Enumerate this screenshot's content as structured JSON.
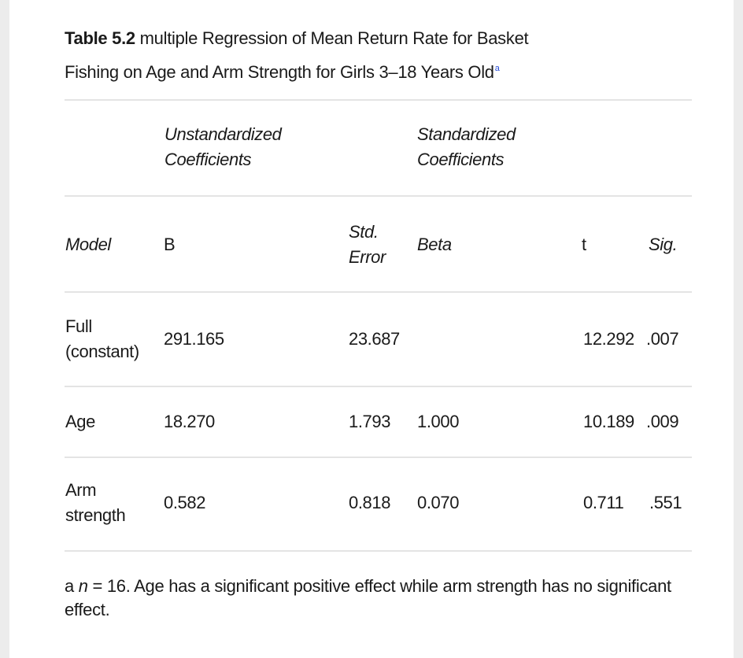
{
  "caption": {
    "label": "Table 5.2",
    "line1": "multiple Regression of Mean Return Rate for Basket",
    "line2": "Fishing on Age and Arm Strength for Girls 3–18 Years Old",
    "footnote_marker": "a"
  },
  "table": {
    "group_headers": {
      "unstandardized_line1": "Unstandardized",
      "unstandardized_line2": "Coefficients",
      "standardized_line1": "Standardized",
      "standardized_line2": "Coefficients"
    },
    "columns": {
      "model": "Model",
      "b": "B",
      "std_error_line1": "Std.",
      "std_error_line2": "Error",
      "beta": "Beta",
      "t": "t",
      "sig": "Sig."
    },
    "rows": [
      {
        "model_line1": "Full",
        "model_line2": "(constant)",
        "b": "291.165",
        "std_error": "23.687",
        "beta": "",
        "t": "12.292",
        "sig": ".007"
      },
      {
        "model_line1": "Age",
        "model_line2": "",
        "b": "18.270",
        "std_error": "1.793",
        "beta": "1.000",
        "t": "10.189",
        "sig": ".009"
      },
      {
        "model_line1": "Arm",
        "model_line2": "strength",
        "b": "0.582",
        "std_error": "0.818",
        "beta": "0.070",
        "t": "0.711",
        "sig": ".551"
      }
    ]
  },
  "note": {
    "marker": "a",
    "n_symbol": "n",
    "text": "= 16. Age has a significant positive effect while arm strength has no significant effect."
  }
}
